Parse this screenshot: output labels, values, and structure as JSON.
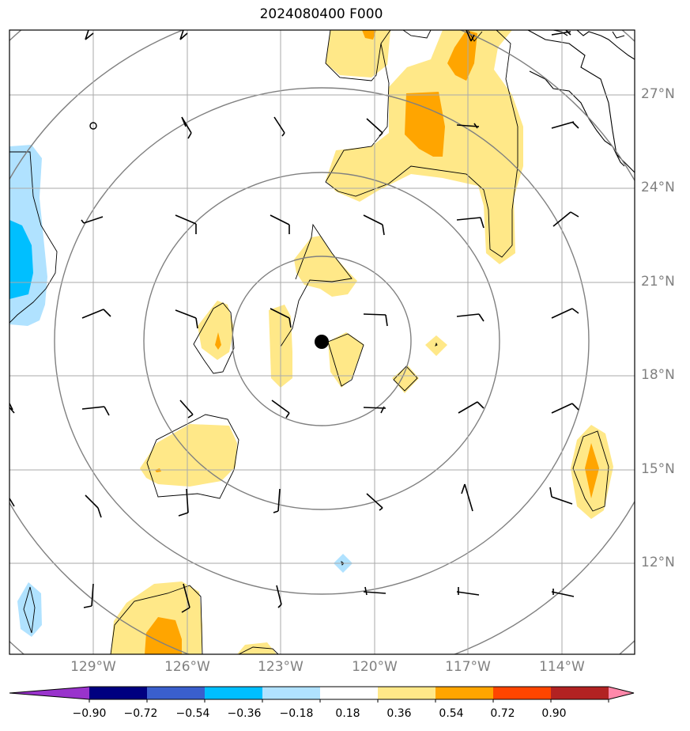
{
  "title": "2024080400 F000",
  "lat_labels": [
    "27°N",
    "24°N",
    "21°N",
    "18°N",
    "15°N",
    "12°N"
  ],
  "lon_labels": [
    "129°W",
    "126°W",
    "123°W",
    "120°W",
    "117°W",
    "114°W"
  ],
  "colorbar": {
    "labels": [
      "−0.90",
      "−0.72",
      "−0.54",
      "−0.36",
      "−0.18",
      "0.18",
      "0.36",
      "0.54",
      "0.72",
      "0.90"
    ],
    "colors": [
      "#9933cc",
      "#000080",
      "#3a5fcd",
      "#00bfff",
      "#b0e2ff",
      "#ffffff",
      "#ffe888",
      "#ffa500",
      "#ff4500",
      "#b22222",
      "#ff88aa"
    ]
  },
  "chart_data": {
    "type": "map",
    "projection": "lat-lon",
    "lon_range": [
      -131.7,
      -111.7
    ],
    "lat_range": [
      8.9,
      28.9
    ],
    "gridlines": true,
    "storm_center": {
      "lon": -121.7,
      "lat": 19.1
    },
    "range_rings": 6,
    "contour_levels": [
      -0.9,
      -0.72,
      -0.54,
      -0.36,
      -0.18,
      0.18,
      0.36,
      0.54,
      0.72,
      0.9
    ]
  }
}
